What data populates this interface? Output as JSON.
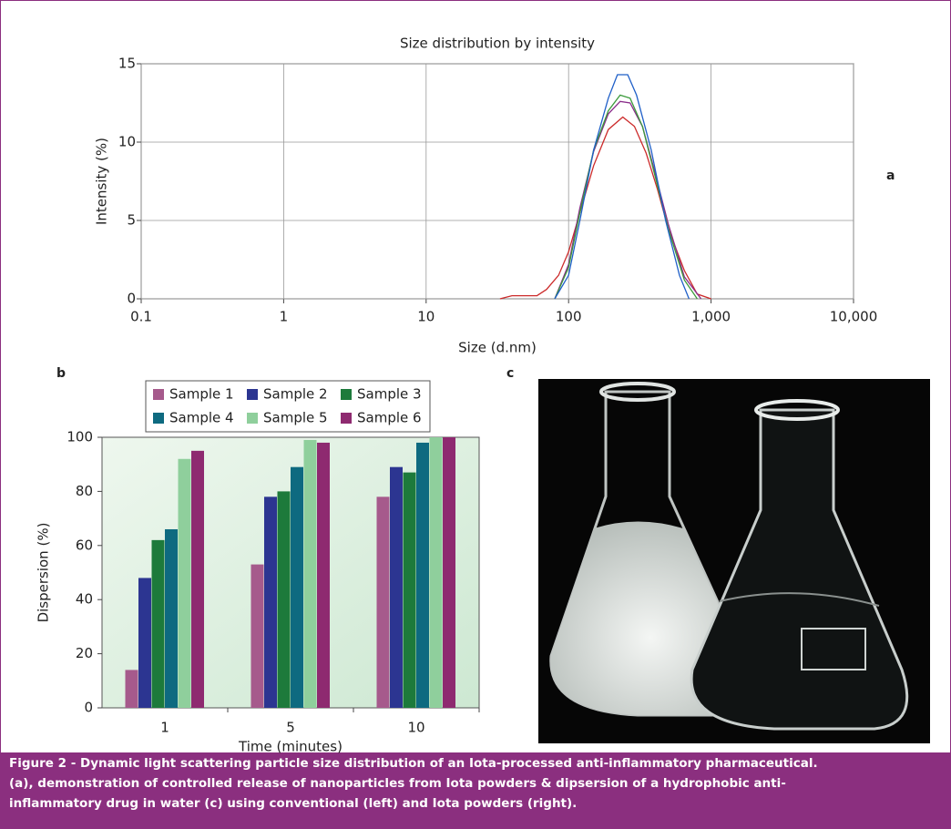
{
  "chart_data": [
    {
      "type": "line",
      "title": "Size distribution by intensity",
      "x_label": "Size (d.nm)",
      "y_label": "Intensity (%)",
      "x_scale": "log",
      "xlim": [
        0.1,
        10000
      ],
      "xticks": [
        0.1,
        1,
        10,
        100,
        {
          "value": 1000,
          "label": "1,000"
        },
        {
          "value": 10000,
          "label": "10,000"
        }
      ],
      "ylim": [
        0,
        15
      ],
      "yticks": [
        0,
        5,
        10,
        15
      ],
      "grid": true,
      "series": [
        {
          "color": "#cc2b2b",
          "x": [
            33,
            40,
            50,
            60,
            70,
            85,
            100,
            120,
            150,
            190,
            240,
            290,
            350,
            420,
            500,
            650,
            800,
            1000
          ],
          "values": [
            0,
            0.2,
            0.2,
            0.2,
            0.6,
            1.5,
            3,
            5.5,
            8.5,
            10.8,
            11.6,
            11,
            9.3,
            7,
            4.5,
            1.8,
            0.3,
            0
          ]
        },
        {
          "color": "#8a2d8a",
          "x": [
            80,
            100,
            120,
            150,
            190,
            230,
            270,
            330,
            400,
            500,
            650,
            850
          ],
          "values": [
            0,
            2.2,
            5.8,
            9.4,
            11.8,
            12.6,
            12.5,
            11,
            8.2,
            4.8,
            1.4,
            0
          ]
        },
        {
          "color": "#3a9a3a",
          "x": [
            80,
            100,
            120,
            150,
            190,
            230,
            270,
            330,
            400,
            500,
            650,
            800
          ],
          "values": [
            0,
            2,
            5.5,
            9.5,
            12,
            13,
            12.8,
            11,
            8,
            4.5,
            1.2,
            0
          ]
        },
        {
          "color": "#1f5fc8",
          "x": [
            80,
            100,
            120,
            150,
            190,
            220,
            260,
            300,
            380,
            480,
            600,
            700
          ],
          "values": [
            0,
            1.5,
            5,
            9.5,
            12.8,
            14.3,
            14.3,
            13,
            9.5,
            5,
            1.5,
            0
          ]
        }
      ]
    },
    {
      "type": "bar",
      "x_label": "Time (minutes)",
      "y_label": "Dispersion (%)",
      "categories": [
        "1",
        "5",
        "10"
      ],
      "ylim": [
        0,
        100
      ],
      "yticks": [
        0,
        20,
        40,
        60,
        80,
        100
      ],
      "grid": false,
      "legend": "top",
      "series": [
        {
          "name": "Sample 1",
          "color": "#a65a8c",
          "values": [
            14,
            53,
            78
          ]
        },
        {
          "name": "Sample 2",
          "color": "#2c3591",
          "values": [
            48,
            78,
            89
          ]
        },
        {
          "name": "Sample 3",
          "color": "#1d7a3b",
          "values": [
            62,
            80,
            87
          ]
        },
        {
          "name": "Sample 4",
          "color": "#0e6a80",
          "values": [
            66,
            89,
            98
          ]
        },
        {
          "name": "Sample 5",
          "color": "#8fcf9c",
          "values": [
            92,
            99,
            100
          ]
        },
        {
          "name": "Sample 6",
          "color": "#8e2a70",
          "values": [
            95,
            98,
            100
          ]
        }
      ]
    }
  ],
  "panels": {
    "a": "a",
    "b": "b",
    "c": "c"
  },
  "caption": [
    "Figure 2 - Dynamic light scattering particle size distribution of an Iota-processed anti-inflammatory pharmaceutical.",
    "(a), demonstration of controlled release of nanoparticles from Iota powders & dipsersion of a hydrophobic anti-",
    "inflammatory drug in water (c) using conventional (left) and Iota powders (right)."
  ]
}
